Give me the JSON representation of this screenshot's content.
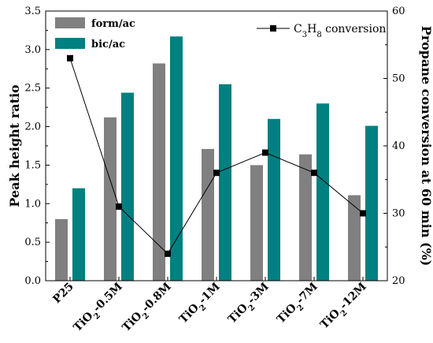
{
  "chart_data": {
    "type": "bar",
    "categories": [
      "P25",
      "TiO2-0.5M",
      "TiO2-0.8M",
      "TiO2-1M",
      "TiO2-3M",
      "TiO2-7M",
      "TiO2-12M"
    ],
    "series": [
      {
        "name": "form/ac",
        "kind": "bar",
        "axis": "left",
        "color": "#808080",
        "values": [
          0.8,
          2.12,
          2.82,
          1.71,
          1.5,
          1.64,
          1.11
        ]
      },
      {
        "name": "bic/ac",
        "kind": "bar",
        "axis": "left",
        "color": "#008080",
        "values": [
          1.2,
          2.44,
          3.17,
          2.55,
          2.1,
          2.3,
          2.01
        ]
      },
      {
        "name": "C3H8 conversion",
        "kind": "line",
        "axis": "right",
        "color": "#000000",
        "values": [
          53,
          31,
          24,
          36,
          39,
          36,
          30
        ]
      }
    ],
    "ylabel": "Peak height ratio",
    "y2label": "Propane conversion at 60 min (%)",
    "ylim": [
      0.0,
      3.5
    ],
    "y2lim": [
      20,
      60
    ],
    "yticks": [
      "0.0",
      "0.5",
      "1.0",
      "1.5",
      "2.0",
      "2.5",
      "3.0",
      "3.5"
    ],
    "y2ticks": [
      "20",
      "30",
      "40",
      "50",
      "60"
    ],
    "legend": {
      "bars_position": "top-left",
      "line_position": "top-right"
    },
    "grid": false
  }
}
